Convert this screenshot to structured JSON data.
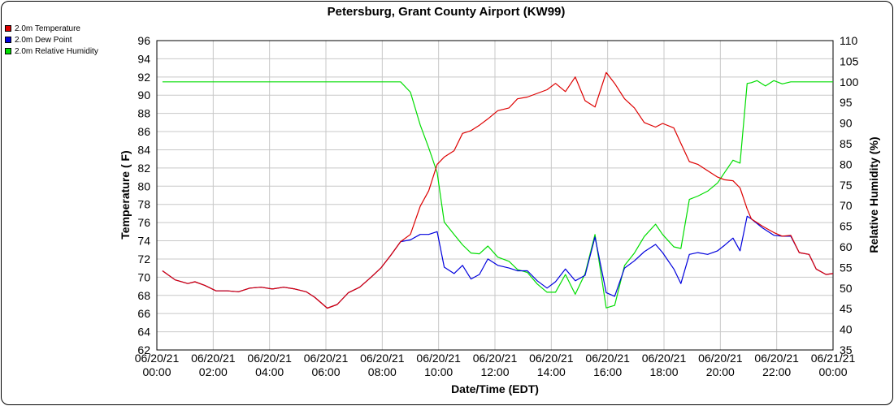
{
  "chart_data": {
    "type": "line",
    "title": "Petersburg, Grant County Airport (KW99)",
    "xlabel": "Date/Time (EDT)",
    "ylabel_left": "Temperature ( F)",
    "ylabel_right": "Relative Humidity (%)",
    "ylim_left": [
      62,
      96
    ],
    "ylim_right": [
      35,
      110
    ],
    "xlim_hours": [
      0,
      24
    ],
    "x_ticks": [
      {
        "date": "06/20/21",
        "time": "00:00",
        "hour": 0
      },
      {
        "date": "06/20/21",
        "time": "02:00",
        "hour": 2
      },
      {
        "date": "06/20/21",
        "time": "04:00",
        "hour": 4
      },
      {
        "date": "06/20/21",
        "time": "06:00",
        "hour": 6
      },
      {
        "date": "06/20/21",
        "time": "08:00",
        "hour": 8
      },
      {
        "date": "06/20/21",
        "time": "10:00",
        "hour": 10
      },
      {
        "date": "06/20/21",
        "time": "12:00",
        "hour": 12
      },
      {
        "date": "06/20/21",
        "time": "14:00",
        "hour": 14
      },
      {
        "date": "06/20/21",
        "time": "16:00",
        "hour": 16
      },
      {
        "date": "06/20/21",
        "time": "18:00",
        "hour": 18
      },
      {
        "date": "06/20/21",
        "time": "20:00",
        "hour": 20
      },
      {
        "date": "06/20/21",
        "time": "22:00",
        "hour": 22
      },
      {
        "date": "06/21/21",
        "time": "00:00",
        "hour": 24
      }
    ],
    "y_ticks_left": [
      62,
      64,
      66,
      68,
      70,
      72,
      74,
      76,
      78,
      80,
      82,
      84,
      86,
      88,
      90,
      92,
      94,
      96
    ],
    "y_ticks_right": [
      35,
      40,
      45,
      50,
      55,
      60,
      65,
      70,
      75,
      80,
      85,
      90,
      95,
      100,
      105,
      110
    ],
    "grid": true,
    "legend_position": "top-left",
    "series": [
      {
        "name": "2.0m Temperature",
        "color": "#dd0000",
        "axis": "left",
        "points": [
          [
            0.2,
            70.7
          ],
          [
            0.65,
            69.7
          ],
          [
            1.1,
            69.3
          ],
          [
            1.35,
            69.5
          ],
          [
            1.7,
            69.1
          ],
          [
            2.1,
            68.5
          ],
          [
            2.5,
            68.5
          ],
          [
            2.9,
            68.4
          ],
          [
            3.3,
            68.8
          ],
          [
            3.7,
            68.9
          ],
          [
            4.1,
            68.7
          ],
          [
            4.5,
            68.9
          ],
          [
            4.9,
            68.7
          ],
          [
            5.3,
            68.4
          ],
          [
            5.6,
            67.8
          ],
          [
            6.05,
            66.6
          ],
          [
            6.4,
            67.0
          ],
          [
            6.8,
            68.3
          ],
          [
            7.2,
            68.9
          ],
          [
            7.6,
            70.0
          ],
          [
            7.95,
            71.0
          ],
          [
            8.3,
            72.4
          ],
          [
            8.65,
            73.9
          ],
          [
            9.0,
            74.7
          ],
          [
            9.35,
            77.8
          ],
          [
            9.65,
            79.5
          ],
          [
            9.95,
            82.4
          ],
          [
            10.2,
            83.2
          ],
          [
            10.55,
            83.9
          ],
          [
            10.85,
            85.8
          ],
          [
            11.15,
            86.1
          ],
          [
            11.45,
            86.7
          ],
          [
            11.75,
            87.4
          ],
          [
            12.1,
            88.3
          ],
          [
            12.5,
            88.6
          ],
          [
            12.8,
            89.6
          ],
          [
            13.15,
            89.8
          ],
          [
            13.5,
            90.2
          ],
          [
            13.85,
            90.6
          ],
          [
            14.15,
            91.3
          ],
          [
            14.5,
            90.4
          ],
          [
            14.85,
            92.0
          ],
          [
            15.2,
            89.4
          ],
          [
            15.55,
            88.7
          ],
          [
            15.95,
            92.5
          ],
          [
            16.25,
            91.3
          ],
          [
            16.6,
            89.6
          ],
          [
            16.95,
            88.6
          ],
          [
            17.3,
            87.0
          ],
          [
            17.7,
            86.5
          ],
          [
            17.95,
            86.9
          ],
          [
            18.35,
            86.4
          ],
          [
            18.6,
            84.7
          ],
          [
            18.9,
            82.7
          ],
          [
            19.2,
            82.4
          ],
          [
            19.55,
            81.7
          ],
          [
            19.9,
            81.0
          ],
          [
            20.15,
            80.7
          ],
          [
            20.45,
            80.6
          ],
          [
            20.7,
            79.8
          ],
          [
            20.95,
            77.5
          ],
          [
            21.1,
            76.4
          ],
          [
            21.5,
            75.6
          ],
          [
            21.9,
            74.9
          ],
          [
            22.2,
            74.5
          ],
          [
            22.5,
            74.6
          ],
          [
            22.8,
            72.7
          ],
          [
            23.15,
            72.5
          ],
          [
            23.4,
            70.9
          ],
          [
            23.75,
            70.3
          ],
          [
            24.0,
            70.4
          ]
        ]
      },
      {
        "name": "2.0m Dew Point",
        "color": "#0000dd",
        "axis": "left",
        "points": [
          [
            0.2,
            70.7
          ],
          [
            0.65,
            69.7
          ],
          [
            1.1,
            69.3
          ],
          [
            1.35,
            69.5
          ],
          [
            1.7,
            69.1
          ],
          [
            2.1,
            68.5
          ],
          [
            2.5,
            68.5
          ],
          [
            2.9,
            68.4
          ],
          [
            3.3,
            68.8
          ],
          [
            3.7,
            68.9
          ],
          [
            4.1,
            68.7
          ],
          [
            4.5,
            68.9
          ],
          [
            4.9,
            68.7
          ],
          [
            5.3,
            68.4
          ],
          [
            5.6,
            67.8
          ],
          [
            6.05,
            66.6
          ],
          [
            6.4,
            67.0
          ],
          [
            6.8,
            68.3
          ],
          [
            7.2,
            68.9
          ],
          [
            7.6,
            70.0
          ],
          [
            7.95,
            71.0
          ],
          [
            8.3,
            72.4
          ],
          [
            8.65,
            73.9
          ],
          [
            9.0,
            74.1
          ],
          [
            9.35,
            74.7
          ],
          [
            9.65,
            74.7
          ],
          [
            9.95,
            75.0
          ],
          [
            10.2,
            71.1
          ],
          [
            10.55,
            70.4
          ],
          [
            10.85,
            71.3
          ],
          [
            11.15,
            69.8
          ],
          [
            11.45,
            70.3
          ],
          [
            11.75,
            72.0
          ],
          [
            12.1,
            71.3
          ],
          [
            12.5,
            71.0
          ],
          [
            12.8,
            70.7
          ],
          [
            13.15,
            70.7
          ],
          [
            13.5,
            69.6
          ],
          [
            13.85,
            68.8
          ],
          [
            14.15,
            69.5
          ],
          [
            14.5,
            70.9
          ],
          [
            14.85,
            69.6
          ],
          [
            15.2,
            70.2
          ],
          [
            15.55,
            74.4
          ],
          [
            15.95,
            68.3
          ],
          [
            16.25,
            67.9
          ],
          [
            16.6,
            71.0
          ],
          [
            16.95,
            71.8
          ],
          [
            17.3,
            72.8
          ],
          [
            17.7,
            73.6
          ],
          [
            17.95,
            72.7
          ],
          [
            18.35,
            70.9
          ],
          [
            18.6,
            69.3
          ],
          [
            18.9,
            72.5
          ],
          [
            19.2,
            72.7
          ],
          [
            19.55,
            72.5
          ],
          [
            19.9,
            72.9
          ],
          [
            20.15,
            73.5
          ],
          [
            20.45,
            74.3
          ],
          [
            20.7,
            72.9
          ],
          [
            20.95,
            76.7
          ],
          [
            21.1,
            76.4
          ],
          [
            21.5,
            75.4
          ],
          [
            21.9,
            74.6
          ],
          [
            22.2,
            74.5
          ],
          [
            22.5,
            74.5
          ],
          [
            22.8,
            72.7
          ],
          [
            23.15,
            72.5
          ],
          [
            23.4,
            70.9
          ],
          [
            23.75,
            70.3
          ],
          [
            24.0,
            70.4
          ]
        ]
      },
      {
        "name": "2.0m Relative Humidity",
        "color": "#00dd00",
        "axis": "right",
        "points": [
          [
            0.2,
            100
          ],
          [
            8.65,
            100
          ],
          [
            9.0,
            97.5
          ],
          [
            9.35,
            89.5
          ],
          [
            9.65,
            84
          ],
          [
            9.95,
            78
          ],
          [
            10.2,
            66
          ],
          [
            10.55,
            63
          ],
          [
            10.85,
            60.5
          ],
          [
            11.15,
            58.5
          ],
          [
            11.45,
            58.3
          ],
          [
            11.75,
            60.2
          ],
          [
            12.1,
            57.5
          ],
          [
            12.5,
            56.5
          ],
          [
            12.8,
            54.5
          ],
          [
            13.15,
            53.8
          ],
          [
            13.5,
            51
          ],
          [
            13.85,
            49
          ],
          [
            14.15,
            49
          ],
          [
            14.5,
            53.3
          ],
          [
            14.85,
            48.5
          ],
          [
            15.2,
            53.5
          ],
          [
            15.55,
            63
          ],
          [
            15.95,
            45.2
          ],
          [
            16.25,
            45.8
          ],
          [
            16.6,
            55.5
          ],
          [
            16.95,
            58.5
          ],
          [
            17.3,
            62.5
          ],
          [
            17.7,
            65.5
          ],
          [
            17.95,
            63
          ],
          [
            18.35,
            60
          ],
          [
            18.6,
            59.6
          ],
          [
            18.9,
            71.5
          ],
          [
            19.2,
            72.3
          ],
          [
            19.55,
            73.5
          ],
          [
            19.9,
            75.5
          ],
          [
            20.15,
            78
          ],
          [
            20.45,
            81
          ],
          [
            20.7,
            80.3
          ],
          [
            20.95,
            99.6
          ],
          [
            21.1,
            99.8
          ],
          [
            21.3,
            100.3
          ],
          [
            21.6,
            99
          ],
          [
            21.9,
            100.3
          ],
          [
            22.2,
            99.5
          ],
          [
            22.5,
            100
          ],
          [
            22.8,
            100
          ],
          [
            23.2,
            100
          ],
          [
            23.6,
            100
          ],
          [
            24.0,
            100
          ]
        ]
      }
    ]
  }
}
